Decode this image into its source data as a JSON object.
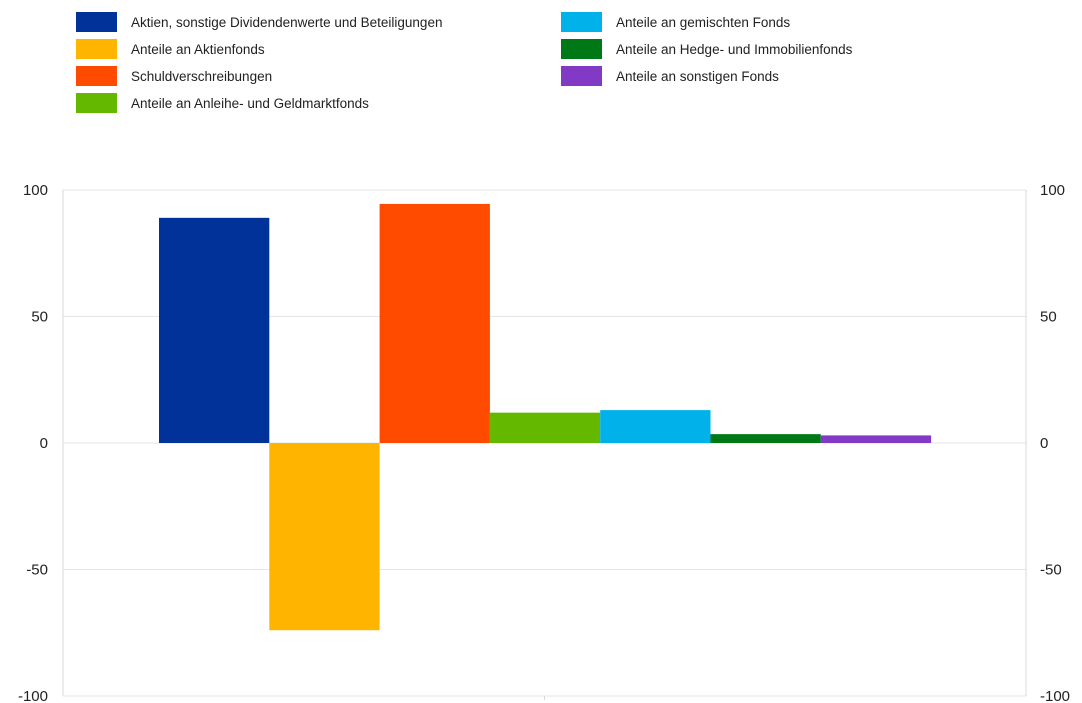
{
  "chart_data": {
    "type": "bar",
    "title": "",
    "xlabel": "",
    "ylabel": "",
    "ylim": [
      -100,
      100
    ],
    "yticks": [
      100,
      50,
      0,
      -50,
      -100
    ],
    "ytick_labels": [
      "100",
      "50",
      "0",
      "-50",
      "-100"
    ],
    "right_axis_ticks": true,
    "grid": true,
    "legend_position": "top",
    "categories": [
      ""
    ],
    "series": [
      {
        "name": "Aktien, sonstige Dividendenwerte und Beteiligungen",
        "values": [
          89
        ],
        "color": "#003299"
      },
      {
        "name": "Anteile an Aktienfonds",
        "values": [
          -74
        ],
        "color": "#FFB400"
      },
      {
        "name": "Schuldverschreibungen",
        "values": [
          94.5
        ],
        "color": "#FF4B00"
      },
      {
        "name": "Anteile an Anleihe- und Geldmarktfonds",
        "values": [
          12
        ],
        "color": "#65B800"
      },
      {
        "name": "Anteile an gemischten Fonds",
        "values": [
          13
        ],
        "color": "#00B1EA"
      },
      {
        "name": "Anteile an Hedge- und Immobilienfonds",
        "values": [
          3.5
        ],
        "color": "#007816"
      },
      {
        "name": "Anteile an sonstigen Fonds",
        "values": [
          3
        ],
        "color": "#8139C6"
      }
    ]
  }
}
